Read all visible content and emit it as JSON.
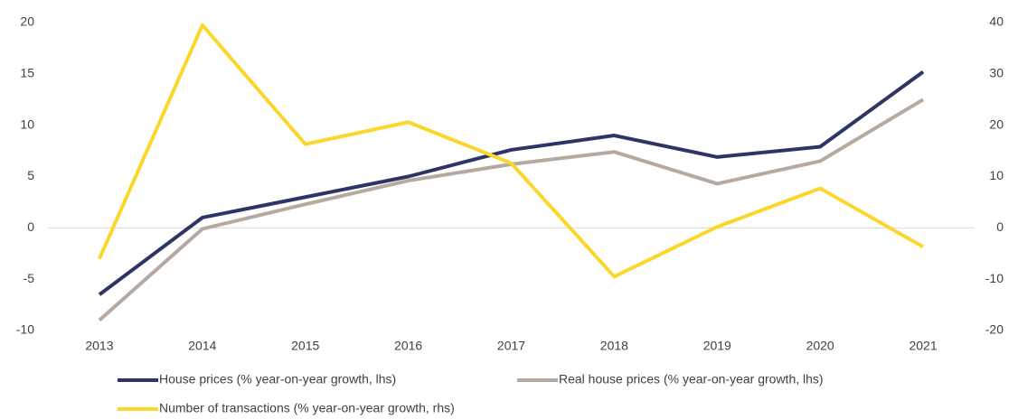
{
  "chart_data": {
    "type": "line",
    "categories": [
      "2013",
      "2014",
      "2015",
      "2016",
      "2017",
      "2018",
      "2019",
      "2020",
      "2021"
    ],
    "series": [
      {
        "name": "House prices (% year-on-year growth, lhs)",
        "color": "#2e3566",
        "values": [
          -6.5,
          1.0,
          3.0,
          5.0,
          7.6,
          9.0,
          6.9,
          7.9,
          15.2
        ]
      },
      {
        "name": "Real house prices (% year-on-year growth, lhs)",
        "color": "#b5a9a0",
        "values": [
          -9.0,
          -0.1,
          2.3,
          4.6,
          6.2,
          7.4,
          4.3,
          6.5,
          12.5
        ]
      },
      {
        "name": "Number of transactions (% year-on-year growth, rhs)",
        "color": "#fcd72b",
        "axis": "y2",
        "values": [
          -6,
          39.5,
          16.3,
          20.6,
          12.6,
          -9.5,
          0.2,
          7.7,
          -3.7
        ]
      }
    ],
    "ylim": [
      -10,
      20
    ],
    "yticks": [
      -10,
      -5,
      0,
      5,
      10,
      15,
      20
    ],
    "y2lim": [
      -20,
      40
    ],
    "y2ticks": [
      -20,
      -10,
      0,
      10,
      20,
      30,
      40
    ]
  }
}
